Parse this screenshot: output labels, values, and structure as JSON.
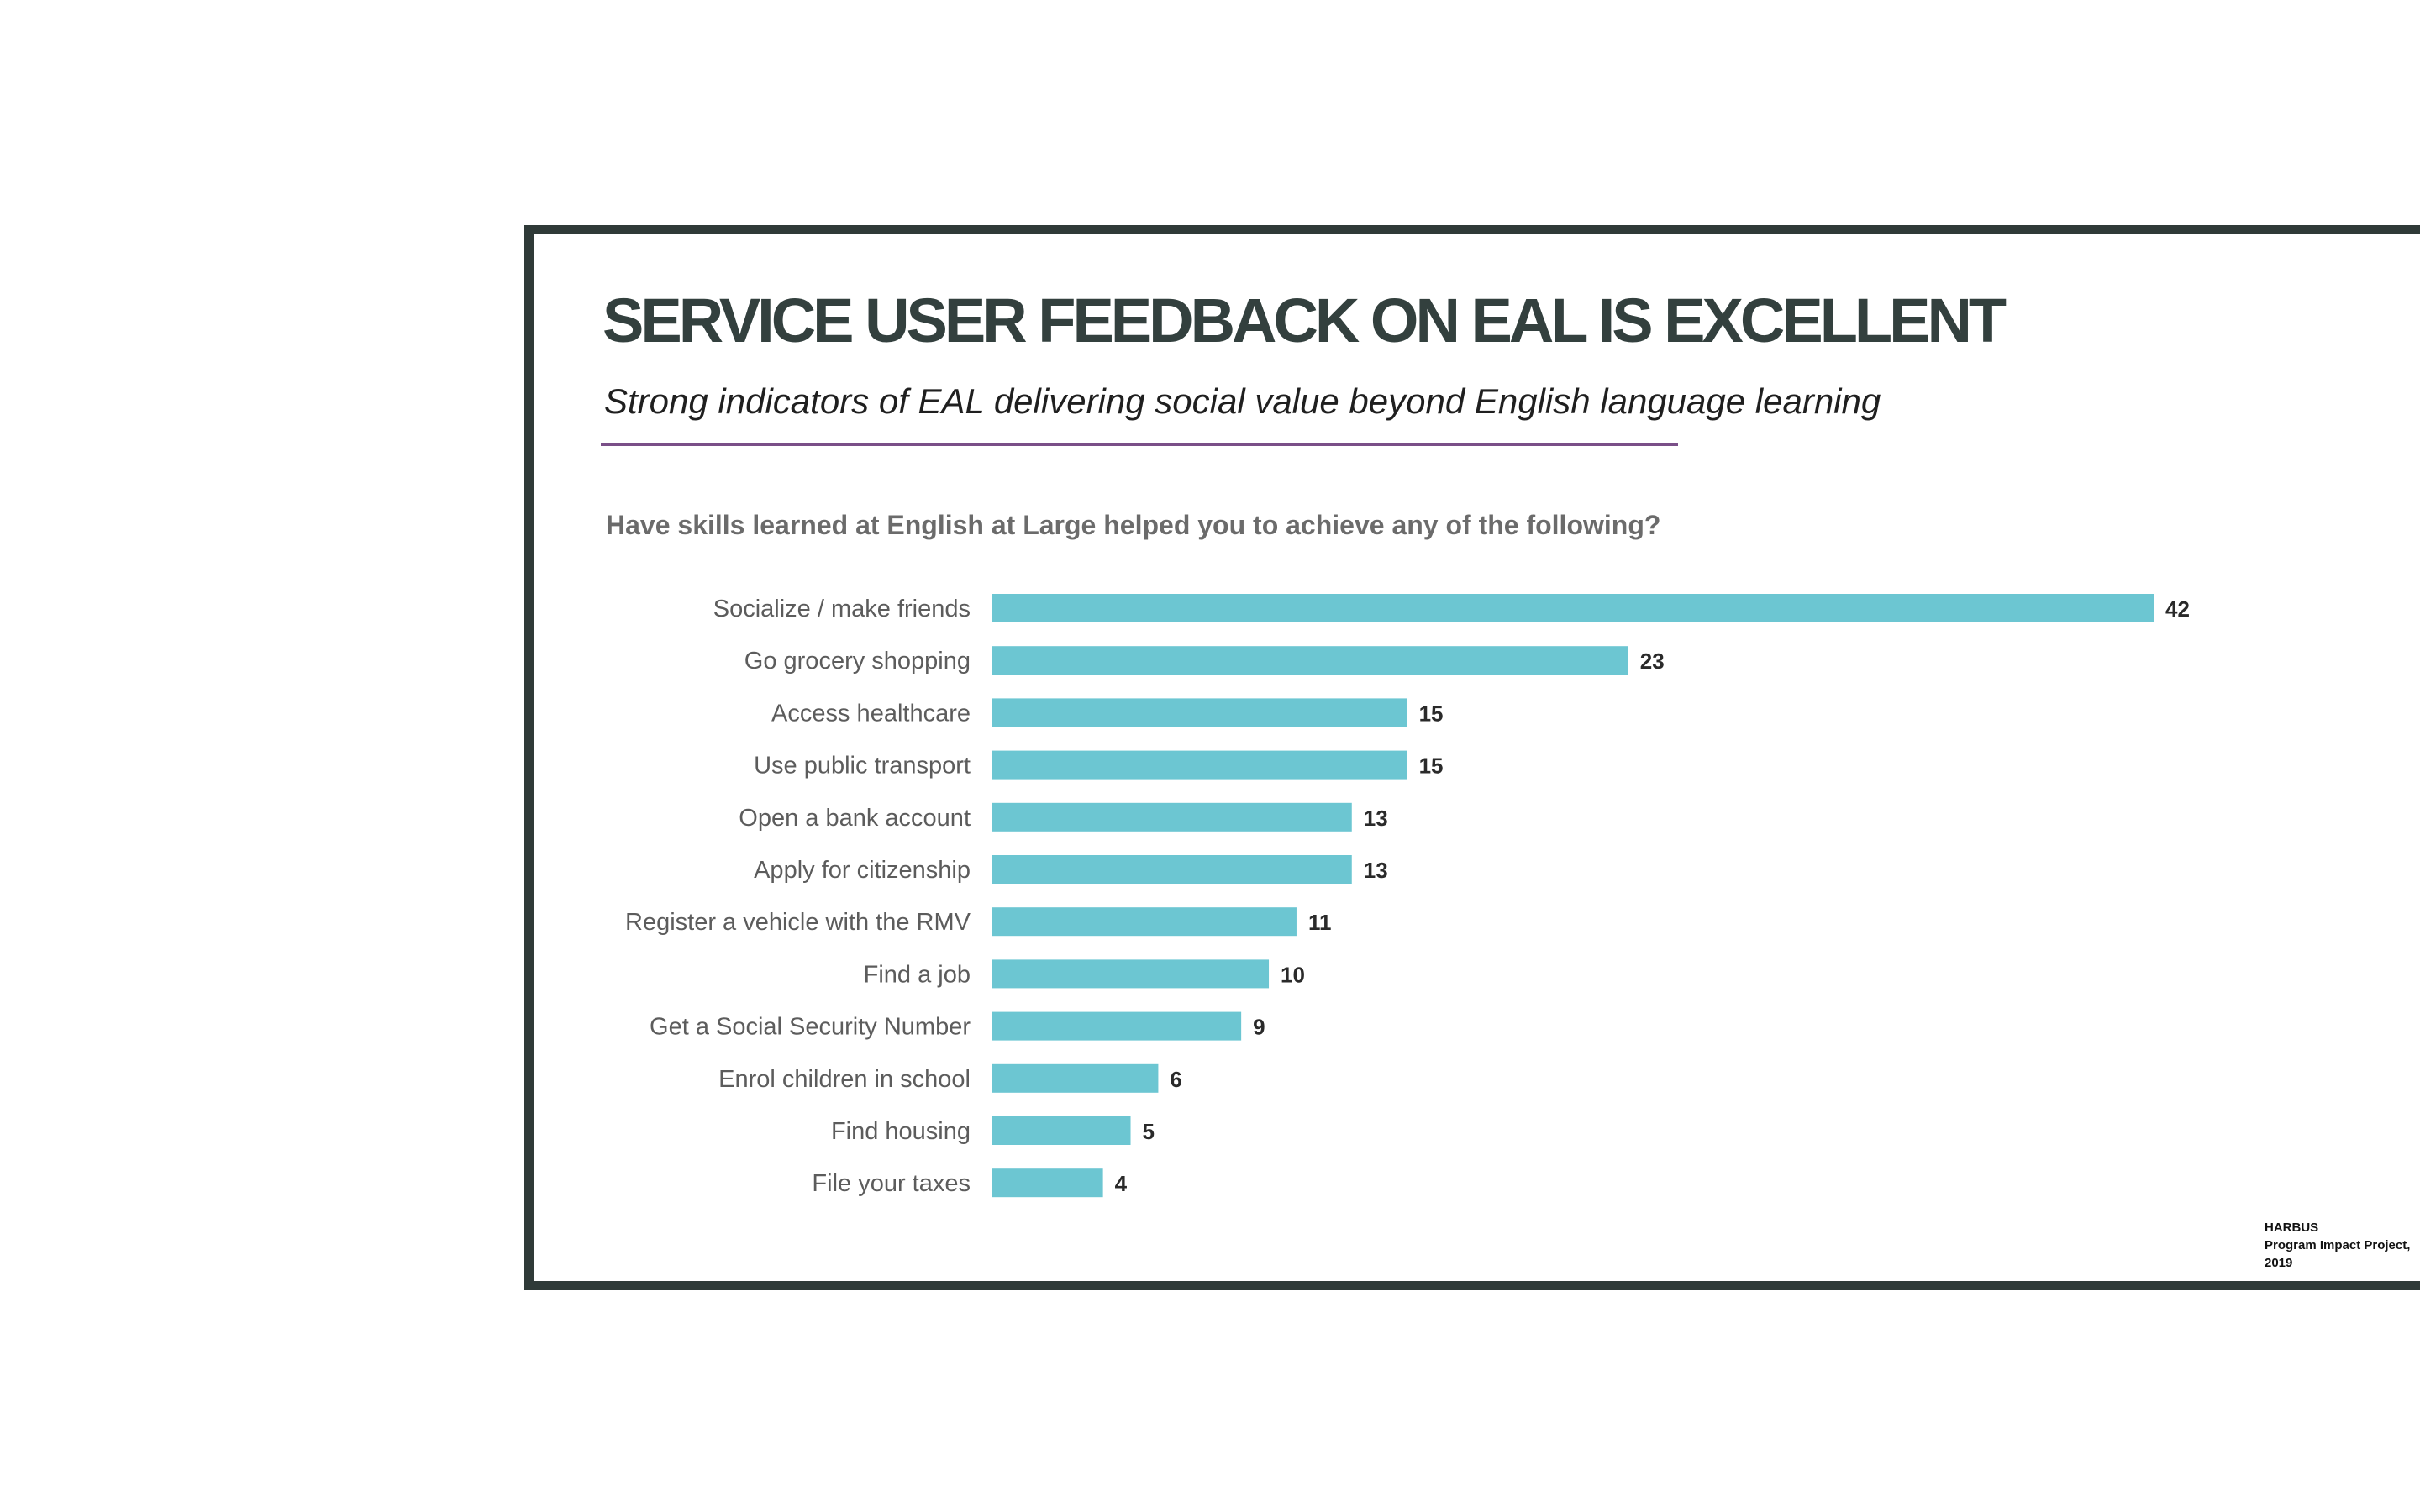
{
  "slide": {
    "title": "SERVICE USER FEEDBACK ON EAL IS EXCELLENT",
    "subtitle": "Strong indicators of EAL delivering social value beyond English language learning",
    "accent_color": "#7a4f88",
    "border_color": "#2f3a38"
  },
  "source": {
    "line1": "HARBUS",
    "line2": "Program Impact Project,",
    "line3": "2019"
  },
  "chart_data": {
    "type": "bar",
    "orientation": "horizontal",
    "title": "Have skills learned at English at Large helped you to achieve any of the following?",
    "categories": [
      "Socialize / make friends",
      "Go grocery shopping",
      "Access healthcare",
      "Use public transport",
      "Open a bank account",
      "Apply for citizenship",
      "Register a vehicle with the RMV",
      "Find a job",
      "Get a Social Security Number",
      "Enrol children in school",
      "Find housing",
      "File your taxes"
    ],
    "values": [
      42,
      23,
      15,
      15,
      13,
      13,
      11,
      10,
      9,
      6,
      5,
      4
    ],
    "bar_color": "#6cc6d2",
    "xlim": [
      0,
      42
    ],
    "grid": false,
    "legend": "none",
    "data_labels": true
  }
}
